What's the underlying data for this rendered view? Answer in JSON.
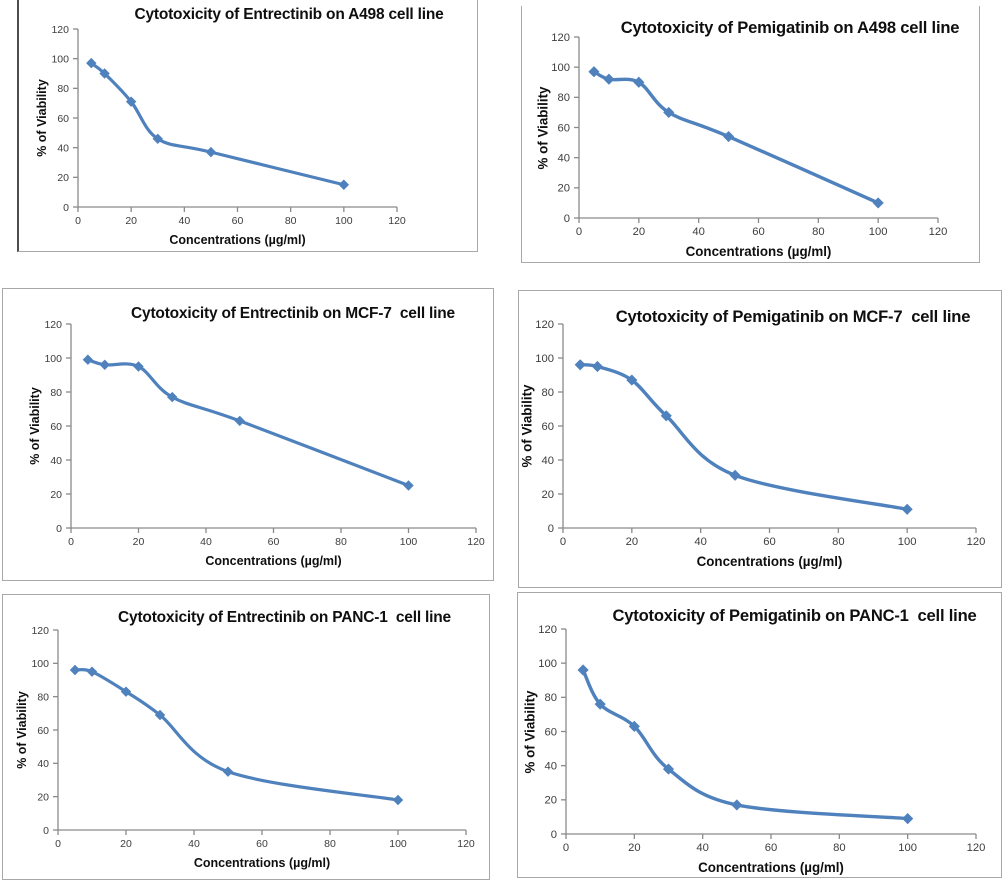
{
  "style": {
    "line_color": "#4F81BD",
    "marker_color": "#4F81BD",
    "axis_color": "#8a8a8a",
    "tick_label_color": "#3d3d3d",
    "title_color": "#0f0f0f",
    "frame_border_color": "#a8a8a8",
    "dark_left_border_color": "#4d4d4d",
    "background": "#ffffff"
  },
  "chart_data": [
    {
      "type": "line",
      "title": "Cytotoxicity of Entrectinib on A498 cell line",
      "xlabel": "Concentrations (µg/ml)",
      "ylabel": "% of Viability",
      "xlim": [
        0,
        120
      ],
      "ylim": [
        0,
        120
      ],
      "x_ticks": [
        0,
        20,
        40,
        60,
        80,
        100,
        120
      ],
      "y_ticks": [
        0,
        20,
        40,
        60,
        80,
        100,
        120
      ],
      "x": [
        5,
        10,
        20,
        30,
        50,
        100
      ],
      "y": [
        97,
        90,
        71,
        46,
        37,
        15
      ],
      "marker": "diamond",
      "smooth": true,
      "grid": false,
      "legend": "none"
    },
    {
      "type": "line",
      "title": "Cytotoxicity of Pemigatinib on A498 cell line",
      "xlabel": "Concentrations (µg/ml)",
      "ylabel": "% of Viability",
      "xlim": [
        0,
        120
      ],
      "ylim": [
        0,
        120
      ],
      "x_ticks": [
        0,
        20,
        40,
        60,
        80,
        100,
        120
      ],
      "y_ticks": [
        0,
        20,
        40,
        60,
        80,
        100,
        120
      ],
      "x": [
        5,
        10,
        20,
        30,
        50,
        100
      ],
      "y": [
        97,
        92,
        90,
        70,
        54,
        10
      ],
      "marker": "diamond",
      "smooth": true,
      "grid": false,
      "legend": "none"
    },
    {
      "type": "line",
      "title": "Cytotoxicity of Entrectinib on MCF-7  cell line",
      "xlabel": "Concentrations (µg/ml)",
      "ylabel": "% of Viability",
      "xlim": [
        0,
        120
      ],
      "ylim": [
        0,
        120
      ],
      "x_ticks": [
        0,
        20,
        40,
        60,
        80,
        100,
        120
      ],
      "y_ticks": [
        0,
        20,
        40,
        60,
        80,
        100,
        120
      ],
      "x": [
        5,
        10,
        20,
        30,
        50,
        100
      ],
      "y": [
        99,
        96,
        95,
        77,
        63,
        25
      ],
      "marker": "diamond",
      "smooth": true,
      "grid": false,
      "legend": "none"
    },
    {
      "type": "line",
      "title": "Cytotoxicity of Pemigatinib on MCF-7  cell line",
      "xlabel": "Concentrations (µg/ml)",
      "ylabel": "% of Viability",
      "xlim": [
        0,
        120
      ],
      "ylim": [
        0,
        120
      ],
      "x_ticks": [
        0,
        20,
        40,
        60,
        80,
        100,
        120
      ],
      "y_ticks": [
        0,
        20,
        40,
        60,
        80,
        100,
        120
      ],
      "x": [
        5,
        10,
        20,
        30,
        50,
        100
      ],
      "y": [
        96,
        95,
        87,
        66,
        31,
        11
      ],
      "marker": "diamond",
      "smooth": true,
      "grid": false,
      "legend": "none"
    },
    {
      "type": "line",
      "title": "Cytotoxicity of Entrectinib on PANC-1  cell line",
      "xlabel": "Concentrations (µg/ml)",
      "ylabel": "% of Viability",
      "xlim": [
        0,
        120
      ],
      "ylim": [
        0,
        120
      ],
      "x_ticks": [
        0,
        20,
        40,
        60,
        80,
        100,
        120
      ],
      "y_ticks": [
        0,
        20,
        40,
        60,
        80,
        100,
        120
      ],
      "x": [
        5,
        10,
        20,
        30,
        50,
        100
      ],
      "y": [
        96,
        95,
        83,
        69,
        35,
        18
      ],
      "marker": "diamond",
      "smooth": true,
      "grid": false,
      "legend": "none"
    },
    {
      "type": "line",
      "title": "Cytotoxicity of Pemigatinib on PANC-1  cell line",
      "xlabel": "Concentrations (µg/ml)",
      "ylabel": "% of Viability",
      "xlim": [
        0,
        120
      ],
      "ylim": [
        0,
        120
      ],
      "x_ticks": [
        0,
        20,
        40,
        60,
        80,
        100,
        120
      ],
      "y_ticks": [
        0,
        20,
        40,
        60,
        80,
        100,
        120
      ],
      "x": [
        5,
        10,
        20,
        30,
        50,
        100
      ],
      "y": [
        96,
        76,
        63,
        38,
        17,
        9
      ],
      "marker": "diamond",
      "smooth": true,
      "grid": false,
      "legend": "none"
    }
  ]
}
